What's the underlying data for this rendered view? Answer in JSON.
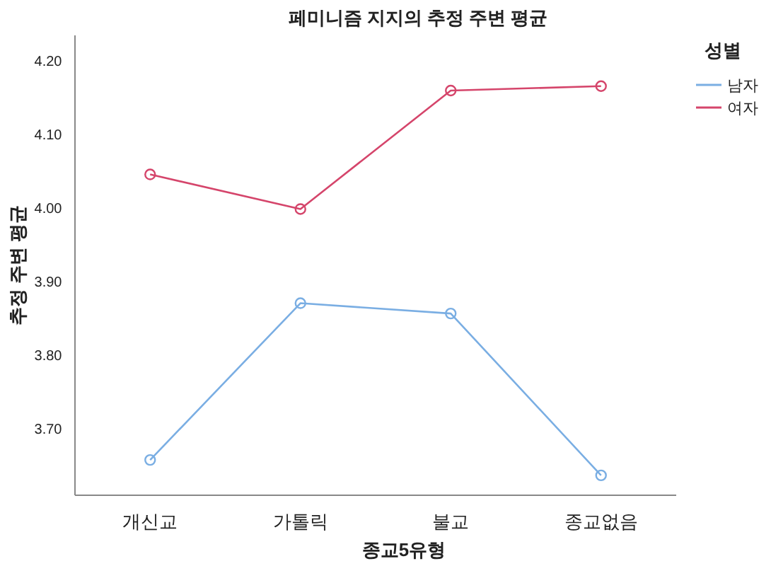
{
  "chart_data": {
    "type": "line",
    "title": "페미니즘 지지의 추정 주변 평균",
    "xlabel": "종교5유형",
    "ylabel": "추정 주변 평균",
    "legend_title": "성별",
    "categories": [
      "개신교",
      "가톨릭",
      "불교",
      "종교없음"
    ],
    "series": [
      {
        "name": "남자",
        "color": "#7aaee3",
        "values": [
          3.658,
          3.871,
          3.857,
          3.637
        ]
      },
      {
        "name": "여자",
        "color": "#d5456b",
        "values": [
          4.046,
          3.999,
          4.16,
          4.166
        ]
      }
    ],
    "ylim": [
      3.61,
      4.235
    ],
    "yticks": [
      {
        "value": 3.7,
        "label": "3.70"
      },
      {
        "value": 3.8,
        "label": "3.80"
      },
      {
        "value": 3.9,
        "label": "3.90"
      },
      {
        "value": 4.0,
        "label": "4.00"
      },
      {
        "value": 4.1,
        "label": "4.10"
      },
      {
        "value": 4.2,
        "label": "4.20"
      }
    ],
    "legend": "top right",
    "marker": "circle"
  }
}
